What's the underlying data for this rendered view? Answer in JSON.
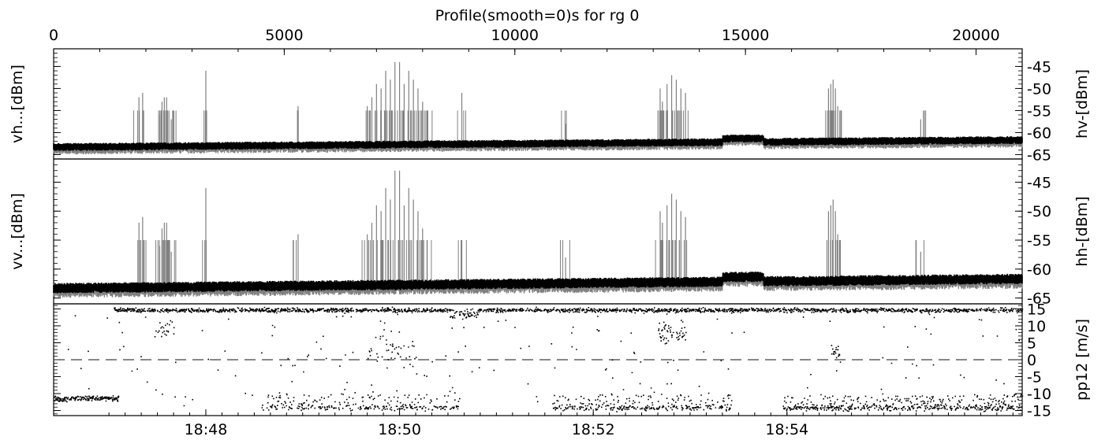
{
  "chart_data": {
    "type": "line",
    "title": "Profile(smooth=0)s for rg 0",
    "top_axis": {
      "xlim": [
        0,
        21000
      ],
      "ticks": [
        0,
        5000,
        10000,
        15000,
        20000
      ],
      "tick_labels": [
        "0",
        "5000",
        "10000",
        "15000",
        "20000"
      ]
    },
    "time_axis": {
      "tick_labels": [
        "18:48",
        "18:50",
        "18:52",
        "18:54"
      ],
      "tick_positions": [
        3300,
        7500,
        11700,
        15900
      ]
    },
    "panels": [
      {
        "left_label": "vh...[dBm]",
        "right_label": "hv-[dBm]",
        "ylim": [
          -66,
          -41
        ],
        "ticks": [
          -45,
          -50,
          -55,
          -60,
          -65
        ],
        "tick_labels": [
          "-45",
          "-50",
          "-55",
          "-60",
          "-65"
        ],
        "series": [
          {
            "name": "",
            "color": "#808080",
            "style": "spikes",
            "baseline": -63,
            "spike_x": [
              1850,
              1930,
              2300,
              2350,
              2400,
              2450,
              2500,
              2550,
              3300,
              5300,
              6800,
              6900,
              7000,
              7100,
              7200,
              7300,
              7400,
              7500,
              7600,
              7700,
              7800,
              7900,
              8000,
              8100,
              8850,
              11100,
              13150,
              13200,
              13300,
              13400,
              13500,
              13600,
              13700,
              16800,
              16850,
              16900,
              16950,
              17000,
              18800
            ],
            "spike_y": [
              -52,
              -51,
              -56,
              -53,
              -52,
              -52,
              -55,
              -57,
              -46,
              -54,
              -54,
              -52,
              -49,
              -50,
              -46,
              -48,
              -44,
              -44,
              -49,
              -46,
              -48,
              -50,
              -53,
              -55,
              -51,
              -58,
              -50,
              -53,
              -49,
              -47,
              -48,
              -50,
              -51,
              -50,
              -49,
              -48,
              -50,
              -54,
              -57
            ]
          }
        ]
      },
      {
        "left_label": "vv...[dBm]",
        "right_label": "hh-[dBm]",
        "ylim": [
          -66,
          -41
        ],
        "ticks": [
          -45,
          -50,
          -55,
          -60,
          -65
        ],
        "tick_labels": [
          "-45",
          "-50",
          "-55",
          "-60",
          "-65"
        ],
        "series": [
          {
            "name": "",
            "color": "#808080",
            "style": "spikes",
            "baseline": -63,
            "spike_x": [
              1850,
              1930,
              2300,
              2350,
              2400,
              2450,
              2500,
              2550,
              3300,
              5300,
              6800,
              6900,
              7000,
              7100,
              7200,
              7300,
              7400,
              7500,
              7600,
              7700,
              7800,
              7900,
              8000,
              8100,
              8850,
              11100,
              13150,
              13200,
              13300,
              13400,
              13500,
              13600,
              13700,
              16800,
              16850,
              16900,
              16950,
              17000,
              18800
            ],
            "spike_y": [
              -52,
              -51,
              -56,
              -53,
              -52,
              -52,
              -55,
              -57,
              -46,
              -54,
              -54,
              -52,
              -49,
              -50,
              -46,
              -48,
              -43,
              -43,
              -49,
              -46,
              -48,
              -50,
              -53,
              -55,
              -55,
              -58,
              -50,
              -52,
              -49,
              -47,
              -48,
              -50,
              -51,
              -50,
              -49,
              -48,
              -50,
              -54,
              -57
            ]
          }
        ]
      },
      {
        "left_label": "",
        "right_label": "pp12 [m/s]",
        "ylim": [
          -16.5,
          16.5
        ],
        "ticks": [
          15,
          10,
          5,
          0,
          -5,
          -10,
          -15
        ],
        "tick_labels": [
          "15",
          "10",
          "5",
          "0",
          "-5",
          "-10",
          "-15"
        ],
        "reference_line": 0,
        "series": [
          {
            "name": "",
            "color": "#000000",
            "style": "points"
          }
        ]
      }
    ]
  }
}
